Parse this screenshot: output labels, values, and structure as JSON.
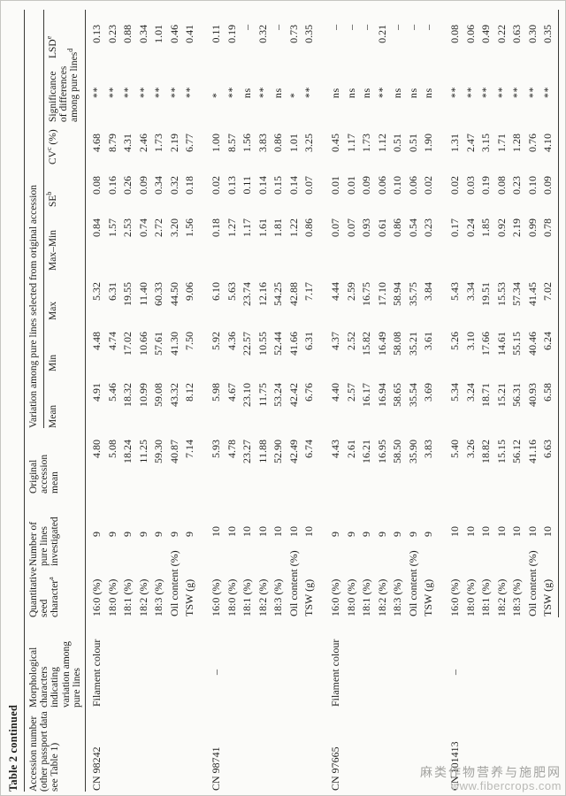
{
  "caption": "Table 2 continued",
  "colors": {
    "text": "#1d1d1b",
    "rule": "#3a3a36",
    "watermark": "#a3a3a0",
    "page_bg": "#fbfbf9"
  },
  "header": {
    "accession": [
      "Accession number",
      "(other passport data",
      "see Table 1)"
    ],
    "morphology": [
      "Morphological",
      "characters",
      "indicating",
      "variation among",
      "pure lines"
    ],
    "character": [
      "Quantitative",
      "seed",
      "character^a^"
    ],
    "n": [
      "Number of",
      "pure lines",
      "investigated"
    ],
    "orig": [
      "Original",
      "accession",
      "mean"
    ],
    "spanner": "Variation among pure lines selected from original accession",
    "sub": [
      [
        "Mean"
      ],
      [
        "Min"
      ],
      [
        "Max"
      ],
      [
        "Max–Min"
      ],
      [
        "SE^b^"
      ],
      [
        "CV^c^ (%)"
      ],
      [
        "Significance",
        "of differences",
        "among pure lines^d^"
      ],
      [
        "LSD^e^"
      ]
    ]
  },
  "groups": [
    {
      "accession": "CN 98242",
      "morphology": "Filament colour",
      "rows": [
        [
          "16:0 (%)",
          "9",
          "4.80",
          "4.91",
          "4.48",
          "5.32",
          "0.84",
          "0.08",
          "4.68",
          "**",
          "0.13"
        ],
        [
          "18:0 (%)",
          "9",
          "5.08",
          "5.46",
          "4.74",
          "6.31",
          "1.57",
          "0.16",
          "8.79",
          "**",
          "0.23"
        ],
        [
          "18:1 (%)",
          "9",
          "18.24",
          "18.32",
          "17.02",
          "19.55",
          "2.53",
          "0.26",
          "4.31",
          "**",
          "0.88"
        ],
        [
          "18:2 (%)",
          "9",
          "11.25",
          "10.99",
          "10.66",
          "11.40",
          "0.74",
          "0.09",
          "2.46",
          "**",
          "0.34"
        ],
        [
          "18:3 (%)",
          "9",
          "59.30",
          "59.08",
          "57.61",
          "60.33",
          "2.72",
          "0.34",
          "1.73",
          "**",
          "1.01"
        ],
        [
          "Oil content (%)",
          "9",
          "40.87",
          "43.32",
          "41.30",
          "44.50",
          "3.20",
          "0.32",
          "2.19",
          "**",
          "0.46"
        ],
        [
          "TSW (g)",
          "9",
          "7.14",
          "8.12",
          "7.50",
          "9.06",
          "1.56",
          "0.18",
          "6.77",
          "**",
          "0.41"
        ]
      ]
    },
    {
      "accession": "CN 98741",
      "morphology": "–",
      "rows": [
        [
          "16:0 (%)",
          "10",
          "5.93",
          "5.98",
          "5.92",
          "6.10",
          "0.18",
          "0.02",
          "1.00",
          "*",
          "0.11"
        ],
        [
          "18:0 (%)",
          "10",
          "4.78",
          "4.67",
          "4.36",
          "5.63",
          "1.27",
          "0.13",
          "8.57",
          "**",
          "0.19"
        ],
        [
          "18:1 (%)",
          "10",
          "23.27",
          "23.10",
          "22.57",
          "23.74",
          "1.17",
          "0.11",
          "1.56",
          "ns",
          "–"
        ],
        [
          "18:2 (%)",
          "10",
          "11.88",
          "11.75",
          "10.55",
          "12.16",
          "1.61",
          "0.14",
          "3.83",
          "**",
          "0.32"
        ],
        [
          "18:3 (%)",
          "10",
          "52.90",
          "53.24",
          "52.44",
          "54.25",
          "1.81",
          "0.15",
          "0.86",
          "ns",
          "–"
        ],
        [
          "Oil content (%)",
          "10",
          "42.49",
          "42.42",
          "41.66",
          "42.88",
          "1.22",
          "0.14",
          "1.01",
          "*",
          "0.73"
        ],
        [
          "TSW (g)",
          "10",
          "6.74",
          "6.76",
          "6.31",
          "7.17",
          "0.86",
          "0.07",
          "3.25",
          "**",
          "0.35"
        ]
      ]
    },
    {
      "accession": "CN 97665",
      "morphology": "Filament colour",
      "rows": [
        [
          "16:0 (%)",
          "9",
          "4.43",
          "4.40",
          "4.37",
          "4.44",
          "0.07",
          "0.01",
          "0.45",
          "ns",
          "–"
        ],
        [
          "18:0 (%)",
          "9",
          "2.61",
          "2.57",
          "2.52",
          "2.59",
          "0.07",
          "0.01",
          "1.17",
          "ns",
          "–"
        ],
        [
          "18:1 (%)",
          "9",
          "16.21",
          "16.17",
          "15.82",
          "16.75",
          "0.93",
          "0.09",
          "1.73",
          "ns",
          "–"
        ],
        [
          "18:2 (%)",
          "9",
          "16.95",
          "16.94",
          "16.49",
          "17.10",
          "0.61",
          "0.06",
          "1.12",
          "**",
          "0.21"
        ],
        [
          "18:3 (%)",
          "9",
          "58.50",
          "58.65",
          "58.08",
          "58.94",
          "0.86",
          "0.10",
          "0.51",
          "ns",
          "–"
        ],
        [
          "Oil content (%)",
          "9",
          "35.90",
          "35.54",
          "35.21",
          "35.75",
          "0.54",
          "0.06",
          "0.51",
          "ns",
          "–"
        ],
        [
          "TSW (g)",
          "9",
          "3.83",
          "3.69",
          "3.61",
          "3.84",
          "0.23",
          "0.02",
          "1.90",
          "ns",
          "–"
        ]
      ]
    },
    {
      "accession": "CN 101413",
      "morphology": "–",
      "rows": [
        [
          "16:0 (%)",
          "10",
          "5.40",
          "5.34",
          "5.26",
          "5.43",
          "0.17",
          "0.02",
          "1.31",
          "**",
          "0.08"
        ],
        [
          "18:0 (%)",
          "10",
          "3.26",
          "3.24",
          "3.10",
          "3.34",
          "0.24",
          "0.03",
          "2.47",
          "**",
          "0.06"
        ],
        [
          "18:1 (%)",
          "10",
          "18.82",
          "18.71",
          "17.66",
          "19.51",
          "1.85",
          "0.19",
          "3.15",
          "**",
          "0.49"
        ],
        [
          "18:2 (%)",
          "10",
          "15.15",
          "15.21",
          "14.61",
          "15.53",
          "0.92",
          "0.08",
          "1.71",
          "**",
          "0.22"
        ],
        [
          "18:3 (%)",
          "10",
          "56.12",
          "56.31",
          "55.15",
          "57.34",
          "2.19",
          "0.23",
          "1.28",
          "**",
          "0.63"
        ],
        [
          "Oil content (%)",
          "10",
          "41.16",
          "40.93",
          "40.46",
          "41.45",
          "0.99",
          "0.10",
          "0.76",
          "**",
          "0.30"
        ],
        [
          "TSW (g)",
          "10",
          "6.63",
          "6.58",
          "6.24",
          "7.02",
          "0.78",
          "0.09",
          "4.10",
          "**",
          "0.35"
        ]
      ]
    }
  ],
  "watermark": {
    "line1": "麻类作物营养与施肥网",
    "line2": "www.fibercrops.com"
  }
}
